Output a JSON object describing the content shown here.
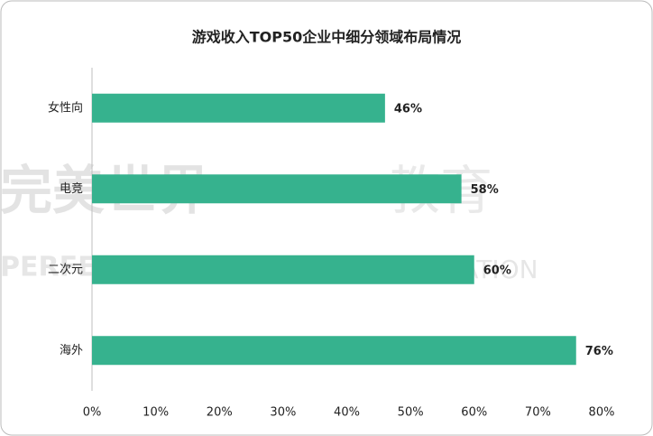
{
  "chart_data": {
    "type": "bar",
    "orientation": "horizontal",
    "title": "游戏收入TOP50企业中细分领域布局情况",
    "categories": [
      "女性向",
      "电竞",
      "二次元",
      "海外"
    ],
    "values": [
      46,
      58,
      60,
      76
    ],
    "value_labels": [
      "46%",
      "58%",
      "60%",
      "76%"
    ],
    "color": "#36b28e",
    "xlim": [
      0,
      80
    ],
    "xticks": [
      {
        "value": 0,
        "label": "0%"
      },
      {
        "value": 10,
        "label": "10%"
      },
      {
        "value": 20,
        "label": "20%"
      },
      {
        "value": 30,
        "label": "30%"
      },
      {
        "value": 40,
        "label": "40%"
      },
      {
        "value": 50,
        "label": "50%"
      },
      {
        "value": 60,
        "label": "60%"
      },
      {
        "value": 70,
        "label": "70%"
      },
      {
        "value": 80,
        "label": "80%"
      }
    ],
    "grid": false,
    "watermark": [
      "完美世界",
      "教育",
      "PERFECT WORLD",
      "EDUCATION"
    ]
  }
}
